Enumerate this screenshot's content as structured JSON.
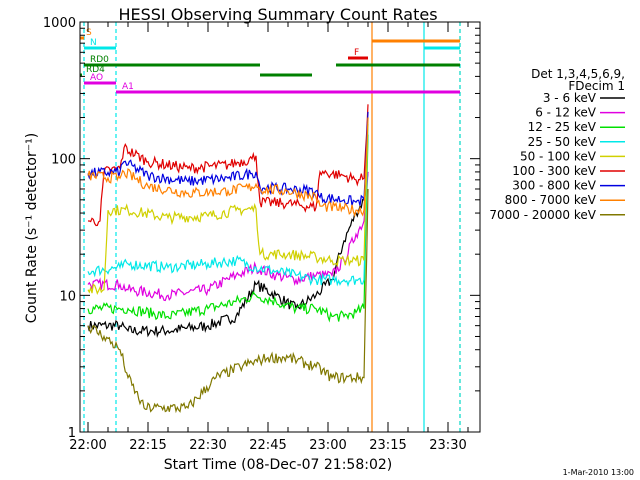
{
  "chart_data": {
    "type": "line",
    "title": "HESSI Observing Summary Count Rates",
    "xlabel": "Start Time (08-Dec-07 21:58:02)",
    "ylabel": "Count Rate (s⁻¹ detector⁻¹)",
    "y_scale": "log",
    "ylim": [
      1,
      1000
    ],
    "xlim": [
      "21:58",
      "23:38"
    ],
    "x_ticks": [
      "22:00",
      "22:15",
      "22:30",
      "22:45",
      "23:00",
      "23:15",
      "23:30"
    ],
    "y_ticks": [
      "1",
      "10",
      "100",
      "1000"
    ],
    "grid": false,
    "legend_position": "right",
    "legend_header": [
      "Det 1,3,4,5,6,9,",
      "FDecim 1"
    ],
    "series": [
      {
        "name": "3 - 6 keV",
        "color": "#000000",
        "points": [
          [
            "22:00",
            6
          ],
          [
            "22:08",
            6
          ],
          [
            "22:10",
            5.5
          ],
          [
            "22:20",
            5.5
          ],
          [
            "22:30",
            6
          ],
          [
            "22:37",
            7
          ],
          [
            "22:42",
            12
          ],
          [
            "22:47",
            10
          ],
          [
            "22:52",
            8
          ],
          [
            "22:57",
            10
          ],
          [
            "23:01",
            13
          ],
          [
            "23:04",
            25
          ],
          [
            "23:07",
            40
          ],
          [
            "23:09",
            50
          ],
          [
            "23:10",
            80
          ]
        ]
      },
      {
        "name": "6 - 12 keV",
        "color": "#e000e0",
        "points": [
          [
            "22:00",
            12
          ],
          [
            "22:08",
            12
          ],
          [
            "22:10",
            11
          ],
          [
            "22:20",
            10
          ],
          [
            "22:30",
            11
          ],
          [
            "22:37",
            14
          ],
          [
            "22:42",
            16
          ],
          [
            "22:47",
            14
          ],
          [
            "22:52",
            13
          ],
          [
            "22:57",
            14
          ],
          [
            "23:01",
            14
          ],
          [
            "23:04",
            18
          ],
          [
            "23:07",
            28
          ],
          [
            "23:09",
            35
          ],
          [
            "23:10",
            80
          ]
        ]
      },
      {
        "name": "12 - 25 keV",
        "color": "#00e000",
        "points": [
          [
            "22:00",
            8
          ],
          [
            "22:08",
            8
          ],
          [
            "22:10",
            8
          ],
          [
            "22:20",
            7
          ],
          [
            "22:30",
            8
          ],
          [
            "22:37",
            9
          ],
          [
            "22:42",
            10
          ],
          [
            "22:47",
            9
          ],
          [
            "22:52",
            8
          ],
          [
            "22:57",
            8
          ],
          [
            "23:01",
            7
          ],
          [
            "23:04",
            7
          ],
          [
            "23:07",
            7.5
          ],
          [
            "23:09",
            8
          ],
          [
            "23:10",
            150
          ]
        ]
      },
      {
        "name": "25 - 50 keV",
        "color": "#00e8e8",
        "points": [
          [
            "22:00",
            15
          ],
          [
            "22:08",
            16
          ],
          [
            "22:10",
            17
          ],
          [
            "22:20",
            16
          ],
          [
            "22:30",
            17
          ],
          [
            "22:37",
            18
          ],
          [
            "22:42",
            16
          ],
          [
            "22:47",
            15
          ],
          [
            "22:52",
            14
          ],
          [
            "22:57",
            13
          ],
          [
            "23:01",
            13
          ],
          [
            "23:04",
            13
          ],
          [
            "23:07",
            13
          ],
          [
            "23:09",
            13
          ],
          [
            "23:10",
            180
          ]
        ]
      },
      {
        "name": "50 - 100 keV",
        "color": "#d0d000",
        "points": [
          [
            "22:00",
            11
          ],
          [
            "22:04",
            11
          ],
          [
            "22:05",
            42
          ],
          [
            "22:10",
            42
          ],
          [
            "22:20",
            37
          ],
          [
            "22:30",
            38
          ],
          [
            "22:37",
            42
          ],
          [
            "22:42",
            43
          ],
          [
            "22:43",
            20
          ],
          [
            "22:50",
            20
          ],
          [
            "22:57",
            19
          ],
          [
            "23:01",
            18
          ],
          [
            "23:04",
            18
          ],
          [
            "23:07",
            18
          ],
          [
            "23:09",
            18
          ],
          [
            "23:10",
            200
          ]
        ]
      },
      {
        "name": "100 - 300 keV",
        "color": "#e00000",
        "points": [
          [
            "22:00",
            35
          ],
          [
            "22:03",
            35
          ],
          [
            "22:04",
            80
          ],
          [
            "22:08",
            85
          ],
          [
            "22:09",
            120
          ],
          [
            "22:15",
            95
          ],
          [
            "22:25",
            85
          ],
          [
            "22:35",
            90
          ],
          [
            "22:41",
            100
          ],
          [
            "22:42",
            105
          ],
          [
            "22:43",
            48
          ],
          [
            "22:50",
            47
          ],
          [
            "22:57",
            44
          ],
          [
            "22:58",
            80
          ],
          [
            "23:04",
            75
          ],
          [
            "23:07",
            70
          ],
          [
            "23:09",
            72
          ],
          [
            "23:10",
            250
          ]
        ]
      },
      {
        "name": "300 - 800 keV",
        "color": "#0000e0",
        "points": [
          [
            "22:00",
            78
          ],
          [
            "22:08",
            80
          ],
          [
            "22:09",
            95
          ],
          [
            "22:15",
            75
          ],
          [
            "22:25",
            68
          ],
          [
            "22:35",
            72
          ],
          [
            "22:41",
            78
          ],
          [
            "22:42",
            80
          ],
          [
            "22:43",
            62
          ],
          [
            "22:50",
            60
          ],
          [
            "22:57",
            58
          ],
          [
            "22:58",
            52
          ],
          [
            "23:04",
            50
          ],
          [
            "23:07",
            48
          ],
          [
            "23:09",
            50
          ],
          [
            "23:10",
            220
          ]
        ]
      },
      {
        "name": "800 - 7000 keV",
        "color": "#ff8000",
        "points": [
          [
            "22:00",
            75
          ],
          [
            "22:08",
            72
          ],
          [
            "22:09",
            80
          ],
          [
            "22:15",
            63
          ],
          [
            "22:25",
            56
          ],
          [
            "22:35",
            58
          ],
          [
            "22:41",
            62
          ],
          [
            "22:42",
            65
          ],
          [
            "22:43",
            60
          ],
          [
            "22:50",
            58
          ],
          [
            "22:57",
            52
          ],
          [
            "22:58",
            45
          ],
          [
            "23:04",
            43
          ],
          [
            "23:07",
            42
          ],
          [
            "23:09",
            42
          ],
          [
            "23:10",
            200
          ]
        ]
      },
      {
        "name": "7000 - 20000 keV",
        "color": "#807800",
        "points": [
          [
            "22:00",
            6
          ],
          [
            "22:04",
            5
          ],
          [
            "22:08",
            4
          ],
          [
            "22:10",
            2.5
          ],
          [
            "22:14",
            1.5
          ],
          [
            "22:25",
            1.5
          ],
          [
            "22:32",
            2.5
          ],
          [
            "22:38",
            3
          ],
          [
            "22:45",
            3.5
          ],
          [
            "22:50",
            3.5
          ],
          [
            "22:57",
            3
          ],
          [
            "23:01",
            2.5
          ],
          [
            "23:09",
            2.5
          ],
          [
            "23:10",
            60
          ]
        ]
      }
    ],
    "flag_bars": [
      {
        "label": "S",
        "color": "#ff8000",
        "segments": [
          [
            "21:58",
            "21:59"
          ]
        ]
      },
      {
        "label": "N",
        "color": "#00e8e8",
        "segments": [
          [
            "21:59",
            "22:07"
          ],
          [
            "23:24",
            "23:33"
          ]
        ]
      },
      {
        "label": "RD0",
        "color": "#008000",
        "segments": [
          [
            "21:59",
            "22:43"
          ],
          [
            "23:02",
            "23:33"
          ]
        ]
      },
      {
        "label": "RD4",
        "color": "#008000",
        "segments": [
          [
            "21:58",
            "21:58"
          ],
          [
            "22:43",
            "22:56"
          ]
        ]
      },
      {
        "label": "AO",
        "color": "#e000e0",
        "segments": [
          [
            "21:59",
            "22:07"
          ]
        ]
      },
      {
        "label": "A1",
        "color": "#e000e0",
        "segments": [
          [
            "22:07",
            "23:33"
          ]
        ]
      },
      {
        "label": "F",
        "color": "#e00000",
        "segments": [
          [
            "23:05",
            "23:10"
          ]
        ]
      },
      {
        "label": "",
        "color": "#ff8000",
        "segments": [
          [
            "23:11",
            "23:33"
          ]
        ]
      }
    ],
    "vertical_lines": [
      {
        "time": "21:59",
        "color": "#00e8e8",
        "style": "dashed"
      },
      {
        "time": "22:07",
        "color": "#00e8e8",
        "style": "dashed"
      },
      {
        "time": "23:11",
        "color": "#ff8000",
        "style": "solid"
      },
      {
        "time": "23:24",
        "color": "#00e8e8",
        "style": "solid"
      },
      {
        "time": "23:33",
        "color": "#ff8000",
        "style": "dashed"
      },
      {
        "time": "23:33",
        "color": "#00e8e8",
        "style": "dashed"
      }
    ]
  },
  "footer": {
    "date_stamp": "1-Mar-2010 13:00"
  }
}
